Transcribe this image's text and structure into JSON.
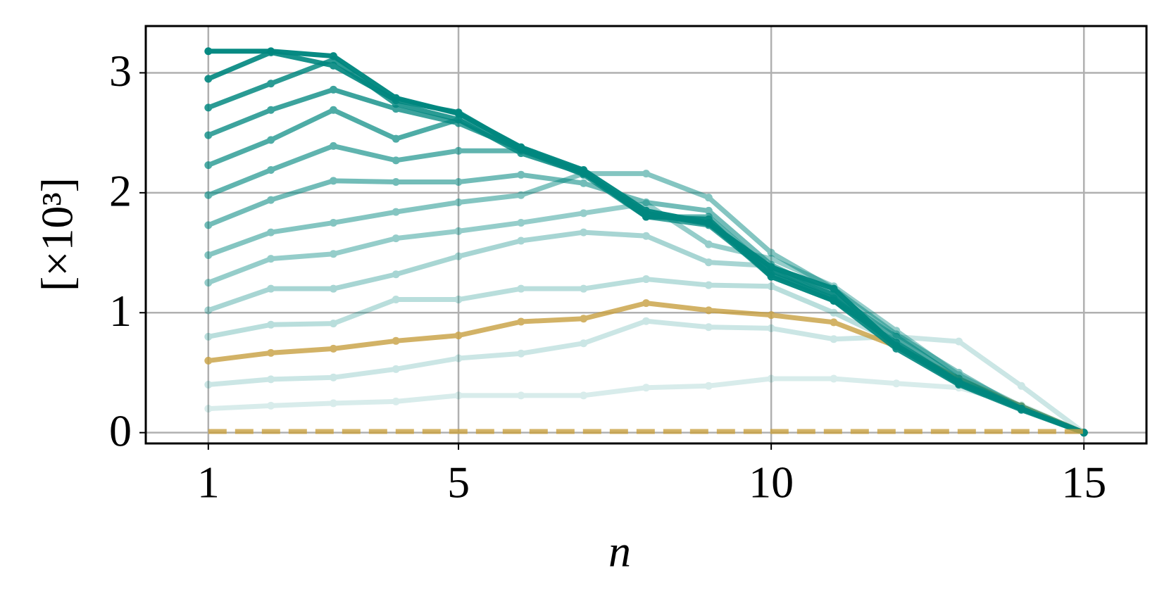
{
  "chart_data": {
    "type": "line",
    "xlabel": "n",
    "ylabel": "[×10³]",
    "xlim": [
      0,
      16
    ],
    "ylim": [
      -0.09,
      3.39
    ],
    "xticks": [
      1,
      5,
      10,
      15
    ],
    "yticks": [
      0,
      1,
      2,
      3
    ],
    "grid": true,
    "x": [
      1,
      2,
      3,
      4,
      5,
      6,
      7,
      8,
      9,
      10,
      11,
      12,
      13,
      14,
      15
    ],
    "series": [
      {
        "color": "#00877f",
        "alpha": 0.15,
        "values": [
          0.2,
          0.225,
          0.245,
          0.26,
          0.31,
          0.31,
          0.31,
          0.375,
          0.39,
          0.45,
          0.45,
          0.41,
          0.375,
          0.23,
          0
        ]
      },
      {
        "color": "#00877f",
        "alpha": 0.2,
        "values": [
          0.4,
          0.445,
          0.46,
          0.53,
          0.62,
          0.66,
          0.745,
          0.93,
          0.88,
          0.87,
          0.78,
          0.8,
          0.76,
          0.39,
          0
        ]
      },
      {
        "color": "#c8a040",
        "alpha": 0.8,
        "values": [
          0.6,
          0.665,
          0.7,
          0.765,
          0.81,
          0.925,
          0.95,
          1.08,
          1.02,
          0.98,
          0.92,
          0.72,
          0.45,
          0.22,
          0
        ]
      },
      {
        "color": "#00877f",
        "alpha": 0.27,
        "values": [
          0.8,
          0.9,
          0.91,
          1.11,
          1.11,
          1.2,
          1.2,
          1.28,
          1.23,
          1.22,
          1.0,
          0.75,
          0.42,
          0.22,
          0
        ]
      },
      {
        "color": "#00877f",
        "alpha": 0.34,
        "values": [
          1.02,
          1.2,
          1.2,
          1.32,
          1.47,
          1.6,
          1.67,
          1.64,
          1.42,
          1.39,
          1.1,
          0.8,
          0.45,
          0.2,
          0
        ]
      },
      {
        "color": "#00877f",
        "alpha": 0.41,
        "values": [
          1.25,
          1.45,
          1.49,
          1.62,
          1.68,
          1.75,
          1.83,
          1.91,
          1.57,
          1.45,
          1.22,
          0.85,
          0.48,
          0.22,
          0
        ]
      },
      {
        "color": "#00877f",
        "alpha": 0.48,
        "values": [
          1.48,
          1.67,
          1.75,
          1.84,
          1.92,
          1.98,
          2.16,
          2.16,
          1.96,
          1.5,
          1.2,
          0.82,
          0.5,
          0.2,
          0
        ]
      },
      {
        "color": "#00877f",
        "alpha": 0.55,
        "values": [
          1.73,
          1.94,
          2.1,
          2.09,
          2.09,
          2.15,
          2.08,
          1.92,
          1.85,
          1.4,
          1.15,
          0.8,
          0.45,
          0.2,
          0
        ]
      },
      {
        "color": "#00877f",
        "alpha": 0.62,
        "values": [
          1.98,
          2.19,
          2.39,
          2.27,
          2.35,
          2.35,
          2.18,
          1.8,
          1.8,
          1.35,
          1.1,
          0.75,
          0.43,
          0.2,
          0
        ]
      },
      {
        "color": "#00877f",
        "alpha": 0.69,
        "values": [
          2.23,
          2.44,
          2.69,
          2.45,
          2.61,
          2.36,
          2.17,
          1.82,
          1.75,
          1.3,
          1.1,
          0.75,
          0.42,
          0.2,
          0
        ]
      },
      {
        "color": "#00877f",
        "alpha": 0.76,
        "values": [
          2.48,
          2.69,
          2.86,
          2.7,
          2.58,
          2.36,
          2.15,
          1.8,
          1.73,
          1.32,
          1.12,
          0.73,
          0.42,
          0.2,
          0
        ]
      },
      {
        "color": "#00877f",
        "alpha": 0.83,
        "values": [
          2.71,
          2.91,
          3.11,
          2.74,
          2.61,
          2.33,
          2.16,
          1.83,
          1.74,
          1.35,
          1.15,
          0.72,
          0.41,
          0.2,
          0
        ]
      },
      {
        "color": "#00877f",
        "alpha": 0.9,
        "values": [
          2.95,
          3.17,
          3.06,
          2.77,
          2.67,
          2.37,
          2.17,
          1.8,
          1.78,
          1.3,
          1.1,
          0.7,
          0.4,
          0.19,
          0
        ]
      },
      {
        "color": "#00877f",
        "alpha": 0.97,
        "values": [
          3.18,
          3.18,
          3.14,
          2.79,
          2.66,
          2.38,
          2.19,
          1.85,
          1.75,
          1.38,
          1.2,
          0.72,
          0.42,
          0.2,
          0
        ]
      },
      {
        "color": "#c8a040",
        "alpha": 0.8,
        "linestyle": "dashed",
        "values": [
          0.01,
          0.01,
          0.01,
          0.01,
          0.01,
          0.01,
          0.01,
          0.01,
          0.01,
          0.01,
          0.01,
          0.01,
          0.01,
          0.01,
          0.01
        ]
      }
    ]
  }
}
